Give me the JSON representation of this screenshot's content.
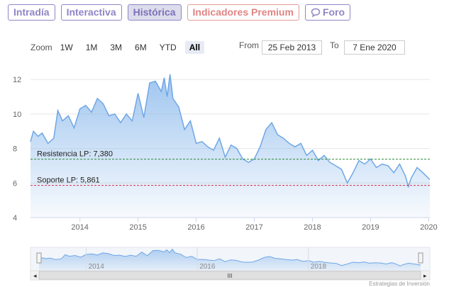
{
  "tabs": [
    {
      "label": "Intradía"
    },
    {
      "label": "Interactiva"
    },
    {
      "label": "Histórica"
    },
    {
      "label": "Indicadores Premium"
    },
    {
      "label": "Foro"
    }
  ],
  "zoom": {
    "label": "Zoom",
    "buttons": [
      "1W",
      "1M",
      "3M",
      "6M",
      "YTD",
      "All"
    ],
    "selected": "All"
  },
  "range": {
    "from_label": "From",
    "from_value": "25 Feb 2013",
    "to_label": "To",
    "to_value": "7 Ene 2020"
  },
  "credit": "Estrategias de Inversión",
  "colors": {
    "accent": "#8f86c6",
    "premium": "#e08585",
    "series": "#7fb2ea",
    "resistance": "#2e8b3a",
    "support": "#d4314a"
  },
  "chart_data": {
    "type": "area",
    "title": "",
    "ylim": [
      4,
      12.5
    ],
    "yticks": [
      4,
      6,
      8,
      10,
      12
    ],
    "xlim": [
      2013.15,
      2020.02
    ],
    "xticks": [
      2014,
      2015,
      2016,
      2017,
      2018,
      2019,
      2020
    ],
    "x": [
      2013.15,
      2013.2,
      2013.28,
      2013.35,
      2013.45,
      2013.55,
      2013.62,
      2013.7,
      2013.8,
      2013.9,
      2014.0,
      2014.1,
      2014.2,
      2014.3,
      2014.4,
      2014.5,
      2014.6,
      2014.7,
      2014.8,
      2014.9,
      2015.0,
      2015.05,
      2015.1,
      2015.2,
      2015.3,
      2015.4,
      2015.45,
      2015.5,
      2015.55,
      2015.6,
      2015.7,
      2015.8,
      2015.9,
      2016.0,
      2016.1,
      2016.2,
      2016.3,
      2016.4,
      2016.5,
      2016.6,
      2016.7,
      2016.8,
      2016.9,
      2017.0,
      2017.1,
      2017.2,
      2017.3,
      2017.4,
      2017.5,
      2017.6,
      2017.7,
      2017.8,
      2017.9,
      2018.0,
      2018.1,
      2018.2,
      2018.3,
      2018.4,
      2018.5,
      2018.6,
      2018.7,
      2018.8,
      2018.9,
      2019.0,
      2019.1,
      2019.2,
      2019.3,
      2019.4,
      2019.5,
      2019.6,
      2019.65,
      2019.7,
      2019.8,
      2019.9,
      2020.02
    ],
    "series": [
      {
        "values": [
          8.4,
          9.0,
          8.7,
          8.9,
          8.3,
          8.6,
          10.2,
          9.6,
          9.9,
          9.2,
          10.3,
          10.5,
          10.1,
          10.9,
          10.6,
          9.9,
          10.0,
          9.5,
          10.0,
          9.6,
          11.2,
          10.5,
          9.8,
          11.8,
          11.9,
          11.3,
          12.1,
          11.0,
          12.3,
          10.9,
          10.4,
          9.1,
          9.6,
          8.3,
          8.4,
          8.1,
          7.9,
          8.6,
          7.5,
          8.2,
          8.0,
          7.4,
          7.2,
          7.4,
          8.1,
          9.1,
          9.5,
          8.8,
          8.6,
          8.3,
          8.1,
          8.3,
          7.6,
          7.9,
          7.3,
          7.6,
          7.2,
          7.0,
          6.8,
          6.0,
          6.6,
          7.3,
          7.1,
          7.4,
          6.9,
          7.1,
          7.0,
          6.6,
          7.1,
          6.4,
          5.8,
          6.3,
          6.9,
          6.6,
          6.2
        ]
      }
    ],
    "reference_lines": [
      {
        "label": "Resistencia LP: 7,380",
        "value": 7.38
      },
      {
        "label": "Soporte LP: 5,861",
        "value": 5.861
      }
    ],
    "navigator_labels": [
      "2014",
      "2016",
      "2018"
    ],
    "navigator_handle": "III",
    "scroll_left": "◂",
    "scroll_right": "▸",
    "grid": "horizontal",
    "legend": "none"
  }
}
